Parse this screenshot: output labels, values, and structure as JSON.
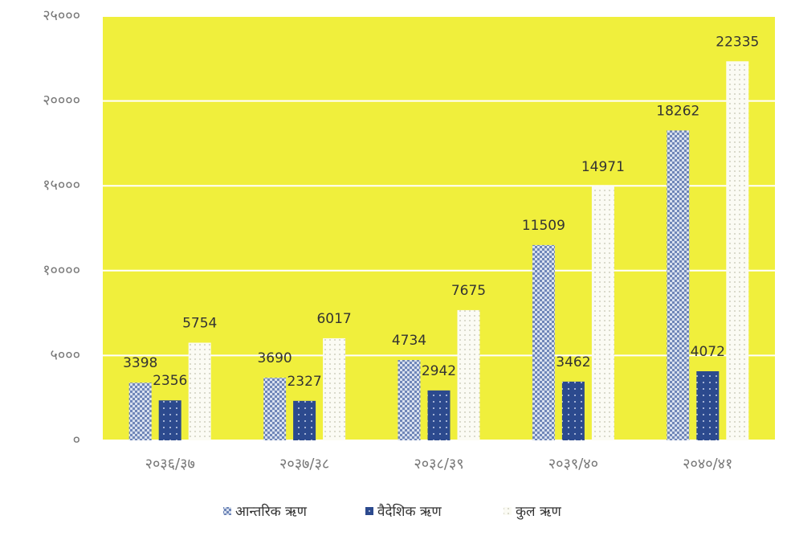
{
  "chart_data": {
    "type": "bar",
    "categories": [
      "२०३६/३७",
      "२०३७/३८",
      "२०३८/३९",
      "२०३९/४०",
      "२०४०/४१"
    ],
    "series": [
      {
        "name": "आन्तरिक ऋण",
        "color": "#9fb2d6",
        "values": [
          3398,
          3690,
          4734,
          11509,
          18262
        ]
      },
      {
        "name": "वैदेशिक ऋण",
        "color": "#2c4a8e",
        "values": [
          2356,
          2327,
          2942,
          3462,
          4072
        ]
      },
      {
        "name": "कुल ऋण",
        "color": "#eeeee2",
        "values": [
          5754,
          6017,
          7675,
          14971,
          22335
        ]
      }
    ],
    "ylim": [
      0,
      25000
    ],
    "yticks": [
      {
        "value": 0,
        "label": "०"
      },
      {
        "value": 5000,
        "label": "५०००"
      },
      {
        "value": 10000,
        "label": "१००००"
      },
      {
        "value": 15000,
        "label": "१५०००"
      },
      {
        "value": 20000,
        "label": "२००००"
      },
      {
        "value": 25000,
        "label": "२५०००"
      }
    ],
    "grid": true,
    "legend": "bottom"
  }
}
